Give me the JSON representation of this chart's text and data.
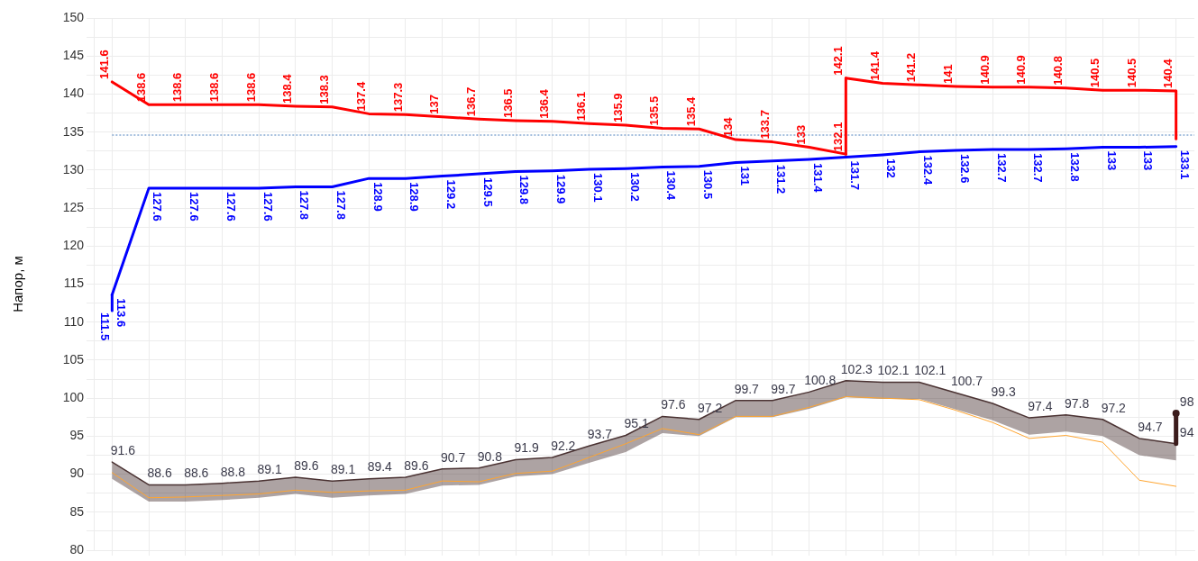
{
  "chart_data": {
    "type": "line",
    "ylabel": "Напор, м",
    "categories": [
      null,
      null,
      null,
      null,
      null,
      null,
      null,
      null,
      null,
      null,
      null,
      null,
      null,
      null,
      null,
      null,
      null,
      null,
      null,
      null,
      null,
      null,
      null,
      null,
      null,
      null,
      null,
      null,
      null,
      null
    ],
    "ylim": [
      80,
      150
    ],
    "yticks": [
      80,
      {
        "value": 82.5,
        "label": null
      },
      85,
      {
        "value": 87.5,
        "label": null
      },
      90,
      {
        "value": 92.5,
        "label": null
      },
      95,
      {
        "value": 97.5,
        "label": null
      },
      100,
      {
        "value": 102.5,
        "label": null
      },
      105,
      {
        "value": 107.5,
        "label": null
      },
      110,
      {
        "value": 112.5,
        "label": null
      },
      115,
      {
        "value": 117.5,
        "label": null
      },
      120,
      {
        "value": 122.5,
        "label": null
      },
      125,
      {
        "value": 127.5,
        "label": null
      },
      130,
      {
        "value": 132.5,
        "label": null
      },
      135,
      {
        "value": 137.5,
        "label": null
      },
      140,
      {
        "value": 142.5,
        "label": null
      },
      145,
      {
        "value": 147.5,
        "label": null
      },
      150
    ],
    "tick_labels": "y",
    "grid": true,
    "legend": false,
    "marker": "none",
    "ref_lines": [
      {
        "axis": "y",
        "value": 134.6,
        "color": "#4a7ebb",
        "line_style": "dotted"
      }
    ],
    "annotations": [
      "111.5"
    ],
    "series": [
      {
        "color": "#ff0000",
        "values": [
          141.6,
          138.6,
          138.6,
          138.6,
          138.6,
          138.4,
          138.3,
          137.4,
          137.3,
          137,
          136.7,
          136.5,
          136.4,
          136.1,
          135.9,
          135.5,
          135.4,
          134,
          133.7,
          133,
          132.1,
          null,
          null,
          null,
          null,
          null,
          null,
          null,
          null,
          null
        ],
        "value_labels": [
          "141.6",
          "138.6",
          "138.6",
          "138.6",
          "138.6",
          "138.4",
          "138.3",
          "137.4",
          "137.3",
          "137",
          "136.7",
          "136.5",
          "136.4",
          "136.1",
          "135.9",
          "135.5",
          "135.4",
          "134",
          "133.7",
          "133",
          "132.1",
          null,
          null,
          null,
          null,
          null,
          null,
          null,
          null,
          null
        ]
      },
      {
        "color": "#ff0000",
        "values": [
          null,
          null,
          null,
          null,
          null,
          null,
          null,
          null,
          null,
          null,
          null,
          null,
          null,
          null,
          null,
          null,
          null,
          null,
          null,
          null,
          142.1,
          141.4,
          141.2,
          141,
          140.9,
          140.9,
          140.8,
          140.5,
          140.5,
          140.4
        ],
        "errors": [
          null,
          null,
          null,
          null,
          null,
          null,
          null,
          null,
          null,
          null,
          null,
          null,
          null,
          null,
          null,
          null,
          null,
          null,
          null,
          null,
          [
            132.1,
            142.1
          ],
          null,
          null,
          null,
          null,
          null,
          null,
          null,
          null,
          [
            134.1,
            140.4
          ]
        ],
        "value_labels": [
          null,
          null,
          null,
          null,
          null,
          null,
          null,
          null,
          null,
          null,
          null,
          null,
          null,
          null,
          null,
          null,
          null,
          null,
          null,
          null,
          "142.1",
          "141.4",
          "141.2",
          "141",
          "140.9",
          "140.9",
          "140.8",
          "140.5",
          "140.5",
          "140.4"
        ]
      },
      {
        "color": "#0000ff",
        "values": [
          113.6,
          127.6,
          127.6,
          127.6,
          127.6,
          127.8,
          127.8,
          128.9,
          128.9,
          129.2,
          129.5,
          129.8,
          129.9,
          130.1,
          130.2,
          130.4,
          130.5,
          131,
          131.2,
          131.4,
          131.7,
          132,
          132.4,
          132.6,
          132.7,
          132.7,
          132.8,
          133,
          133,
          133.1
        ],
        "errors": [
          [
            111.5,
            113.6
          ],
          null,
          null,
          null,
          null,
          null,
          null,
          null,
          null,
          null,
          null,
          null,
          null,
          null,
          null,
          null,
          null,
          null,
          null,
          null,
          null,
          null,
          null,
          null,
          null,
          null,
          null,
          null,
          null,
          null
        ],
        "value_labels": [
          "113.6",
          "127.6",
          "127.6",
          "127.6",
          "127.6",
          "127.8",
          "127.8",
          "128.9",
          "128.9",
          "129.2",
          "129.5",
          "129.8",
          "129.9",
          "130.1",
          "130.2",
          "130.4",
          "130.5",
          "131",
          "131.2",
          "131.4",
          "131.7",
          "132",
          "132.4",
          "132.6",
          "132.7",
          "132.7",
          "132.8",
          "133",
          "133",
          "133.1"
        ]
      },
      {
        "color": "#4a3232",
        "values": [
          91.6,
          88.6,
          88.6,
          88.8,
          89.1,
          89.6,
          89.1,
          89.4,
          89.6,
          90.7,
          90.8,
          91.9,
          92.2,
          93.7,
          95.1,
          97.6,
          97.2,
          99.7,
          99.7,
          100.8,
          102.3,
          102.1,
          102.1,
          100.7,
          99.3,
          97.4,
          97.8,
          97.2,
          94.7,
          94
        ],
        "upper": [
          91.6,
          88.6,
          88.6,
          88.8,
          89.1,
          89.6,
          89.1,
          89.4,
          89.6,
          90.7,
          90.8,
          91.9,
          92.2,
          93.7,
          95.1,
          97.6,
          97.2,
          99.7,
          99.7,
          100.8,
          102.3,
          102.1,
          102.1,
          100.7,
          99.3,
          97.4,
          97.8,
          97.2,
          94.7,
          94
        ],
        "lower": [
          89.4,
          86.4,
          86.4,
          86.6,
          86.9,
          87.4,
          86.9,
          87.2,
          87.4,
          88.5,
          88.6,
          89.7,
          90.0,
          91.5,
          92.9,
          95.4,
          95.0,
          97.5,
          97.5,
          98.6,
          100.1,
          99.9,
          99.9,
          98.5,
          97.1,
          95.2,
          95.6,
          95.0,
          92.5,
          91.8
        ],
        "value_labels": [
          "91.6",
          "88.6",
          "88.6",
          "88.8",
          "89.1",
          "89.6",
          "89.1",
          "89.4",
          "89.6",
          "90.7",
          "90.8",
          "91.9",
          "92.2",
          "93.7",
          "95.1",
          "97.6",
          "97.2",
          "99.7",
          "99.7",
          "100.8",
          "102.3",
          "102.1",
          "102.1",
          "100.7",
          "99.3",
          "97.4",
          "97.8",
          "97.2",
          "94.7",
          "94"
        ]
      },
      {
        "color": "#ffa530",
        "values": [
          90.2,
          86.9,
          87.0,
          87.2,
          87.4,
          87.9,
          87.6,
          87.8,
          87.9,
          89.1,
          89.0,
          90.1,
          90.4,
          92.2,
          94.0,
          96.0,
          95.2,
          97.6,
          97.6,
          98.8,
          100.2,
          100.0,
          99.8,
          98.4,
          96.8,
          94.7,
          95.1,
          94.2,
          89.2,
          88.4
        ]
      },
      {
        "color": "#3b1c1c",
        "marker": "circle",
        "values": [
          null,
          null,
          null,
          null,
          null,
          null,
          null,
          null,
          null,
          null,
          null,
          null,
          null,
          null,
          null,
          null,
          null,
          null,
          null,
          null,
          null,
          null,
          null,
          null,
          null,
          null,
          null,
          null,
          null,
          98
        ],
        "errors": [
          null,
          null,
          null,
          null,
          null,
          null,
          null,
          null,
          null,
          null,
          null,
          null,
          null,
          null,
          null,
          null,
          null,
          null,
          null,
          null,
          null,
          null,
          null,
          null,
          null,
          null,
          null,
          null,
          null,
          [
            94,
            98
          ]
        ],
        "value_labels": [
          null,
          null,
          null,
          null,
          null,
          null,
          null,
          null,
          null,
          null,
          null,
          null,
          null,
          null,
          null,
          null,
          null,
          null,
          null,
          null,
          null,
          null,
          null,
          null,
          null,
          null,
          null,
          null,
          null,
          "98"
        ]
      }
    ]
  }
}
